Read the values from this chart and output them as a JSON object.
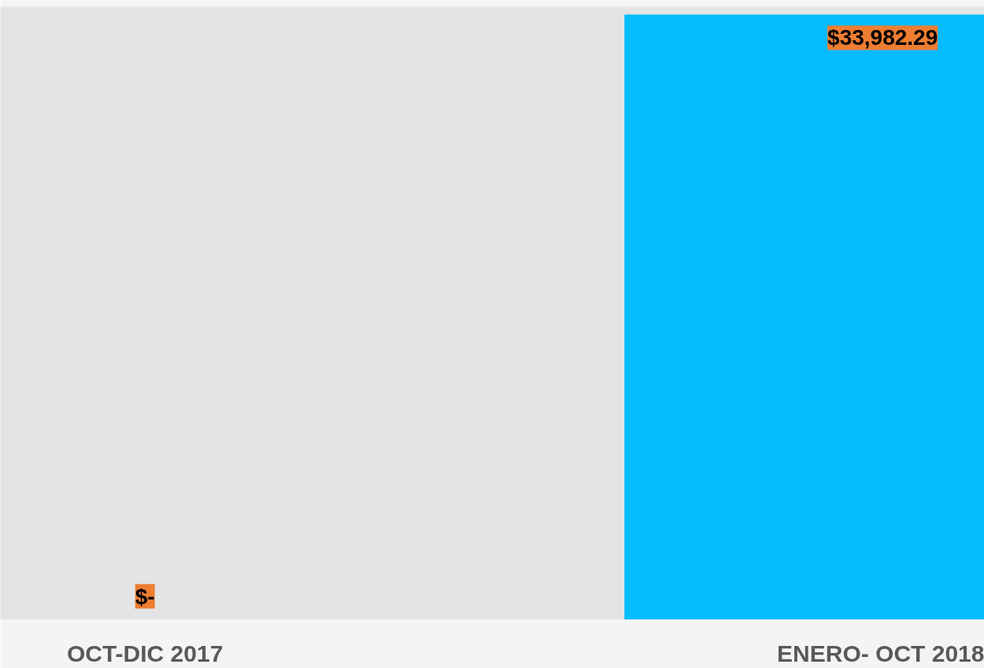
{
  "chart_data": {
    "type": "bar",
    "categories": [
      "OCT-DIC 2017",
      "ENERO- OCT 2018"
    ],
    "values": [
      0,
      33982.29
    ],
    "value_labels": [
      "$-",
      "$33,982.29"
    ],
    "color": "#05bcff"
  }
}
